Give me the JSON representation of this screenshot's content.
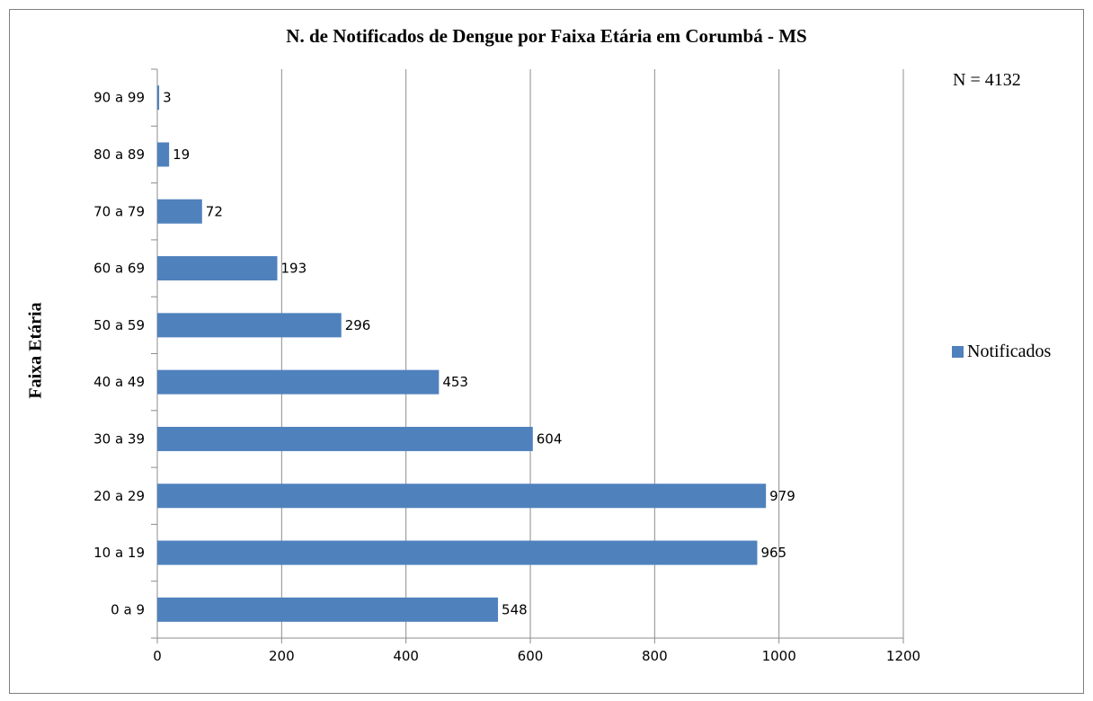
{
  "chart_data": {
    "type": "bar",
    "orientation": "horizontal",
    "title": "N. de Notificados de Dengue por Faixa Etária em Corumbá - MS",
    "annotation": "N = 4132",
    "ylabel": "Faixa Etária",
    "xlabel": "",
    "categories": [
      "0 a 9",
      "10 a 19",
      "20 a 29",
      "30 a 39",
      "40 a 49",
      "50 a 59",
      "60 a 69",
      "70 a 79",
      "80 a 89",
      "90 a 99"
    ],
    "series": [
      {
        "name": "Notificados",
        "values": [
          548,
          965,
          979,
          604,
          453,
          296,
          193,
          72,
          19,
          3
        ],
        "color": "#4f81bd"
      }
    ],
    "xlim": [
      0,
      1200
    ],
    "xticks": [
      0,
      200,
      400,
      600,
      800,
      1000,
      1200
    ],
    "grid": "vertical",
    "legend": "right",
    "data_labels": true
  }
}
